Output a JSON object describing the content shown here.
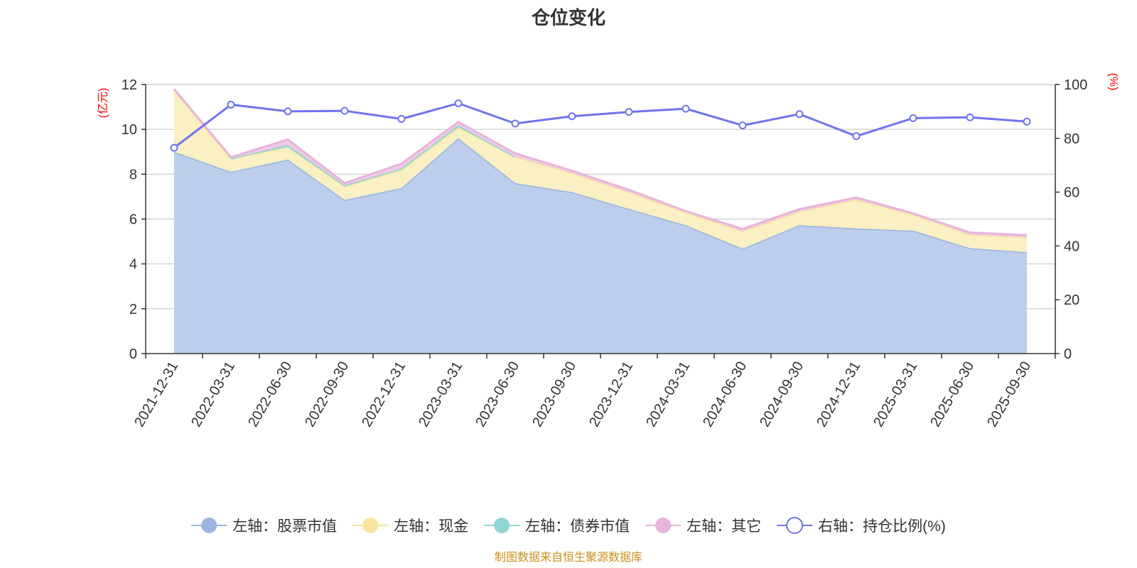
{
  "chart_data": {
    "type": "area",
    "title": "仓位变化",
    "left_unit": "(亿元)",
    "right_unit": "(%)",
    "source": "制图数据来自恒生聚源数据库",
    "categories": [
      "2021-12-31",
      "2022-03-31",
      "2022-06-30",
      "2022-09-30",
      "2022-12-31",
      "2023-03-31",
      "2023-06-30",
      "2023-09-30",
      "2023-12-31",
      "2024-03-31",
      "2024-06-30",
      "2024-09-30",
      "2024-12-31",
      "2025-03-31",
      "2025-06-30",
      "2025-09-30"
    ],
    "y_left": {
      "min": 0,
      "max": 12,
      "ticks": [
        0,
        2,
        4,
        6,
        8,
        10,
        12
      ]
    },
    "y_right": {
      "min": 0,
      "max": 100,
      "ticks": [
        0,
        20,
        40,
        60,
        80,
        100
      ]
    },
    "grid": true,
    "legend_position": "bottom",
    "series": [
      {
        "name": "左轴：股票市值",
        "axis": "left",
        "kind": "area",
        "color": "#9ab5e0",
        "fill": "#b8cbea",
        "values": [
          9.0,
          8.1,
          8.65,
          6.85,
          7.38,
          9.6,
          7.6,
          7.2,
          6.45,
          5.72,
          4.68,
          5.72,
          5.58,
          5.48,
          4.7,
          4.52
        ]
      },
      {
        "name": "左轴：现金",
        "axis": "left",
        "kind": "area",
        "color": "#f8e5a0",
        "fill": "#faefc1",
        "values": [
          2.75,
          0.6,
          0.55,
          0.6,
          0.82,
          0.48,
          1.18,
          0.85,
          0.75,
          0.58,
          0.78,
          0.62,
          1.28,
          0.72,
          0.6,
          0.66
        ]
      },
      {
        "name": "左轴：债券市值",
        "axis": "left",
        "kind": "area",
        "color": "#92d4d2",
        "fill": "#aadcd8",
        "values": [
          null,
          0.0,
          0.1,
          0.05,
          0.05,
          0.1,
          0.0,
          null,
          null,
          null,
          null,
          null,
          null,
          null,
          null,
          null
        ]
      },
      {
        "name": "左轴：其它",
        "axis": "left",
        "kind": "area",
        "color": "#e8b4da",
        "fill": "#f0c8e5",
        "values": [
          0.05,
          0.05,
          0.25,
          0.1,
          0.22,
          0.15,
          0.15,
          0.1,
          0.1,
          0.05,
          0.1,
          0.1,
          0.1,
          0.05,
          0.1,
          0.1
        ]
      },
      {
        "name": "右轴：持仓比例(%)",
        "axis": "right",
        "kind": "line",
        "color": "#7074ee",
        "values": [
          76.5,
          92.5,
          90.0,
          90.2,
          87.2,
          93.0,
          85.5,
          88.2,
          89.8,
          91.0,
          84.8,
          89.0,
          80.8,
          87.5,
          87.8,
          86.2
        ]
      }
    ]
  }
}
